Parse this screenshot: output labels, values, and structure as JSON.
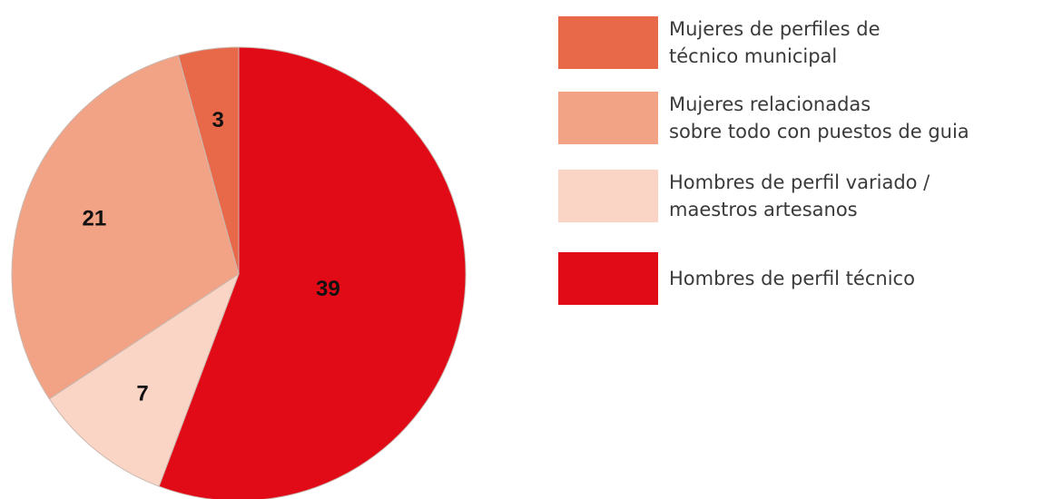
{
  "chart_data": {
    "type": "pie",
    "labels": [
      "Hombres de perfil técnico",
      "Hombres de perfil variado /\nmaestros artesanos",
      "Mujeres relacionadas\nsobre todo con puestos de guia",
      "Mujeres de perfiles de\ntécnico municipal"
    ],
    "values": [
      39,
      7,
      21,
      3
    ],
    "colors": [
      "#e10a17",
      "#fad5c6",
      "#f2a285",
      "#e8684a"
    ],
    "legend_order": [
      3,
      2,
      1,
      0
    ],
    "legend": "right"
  }
}
